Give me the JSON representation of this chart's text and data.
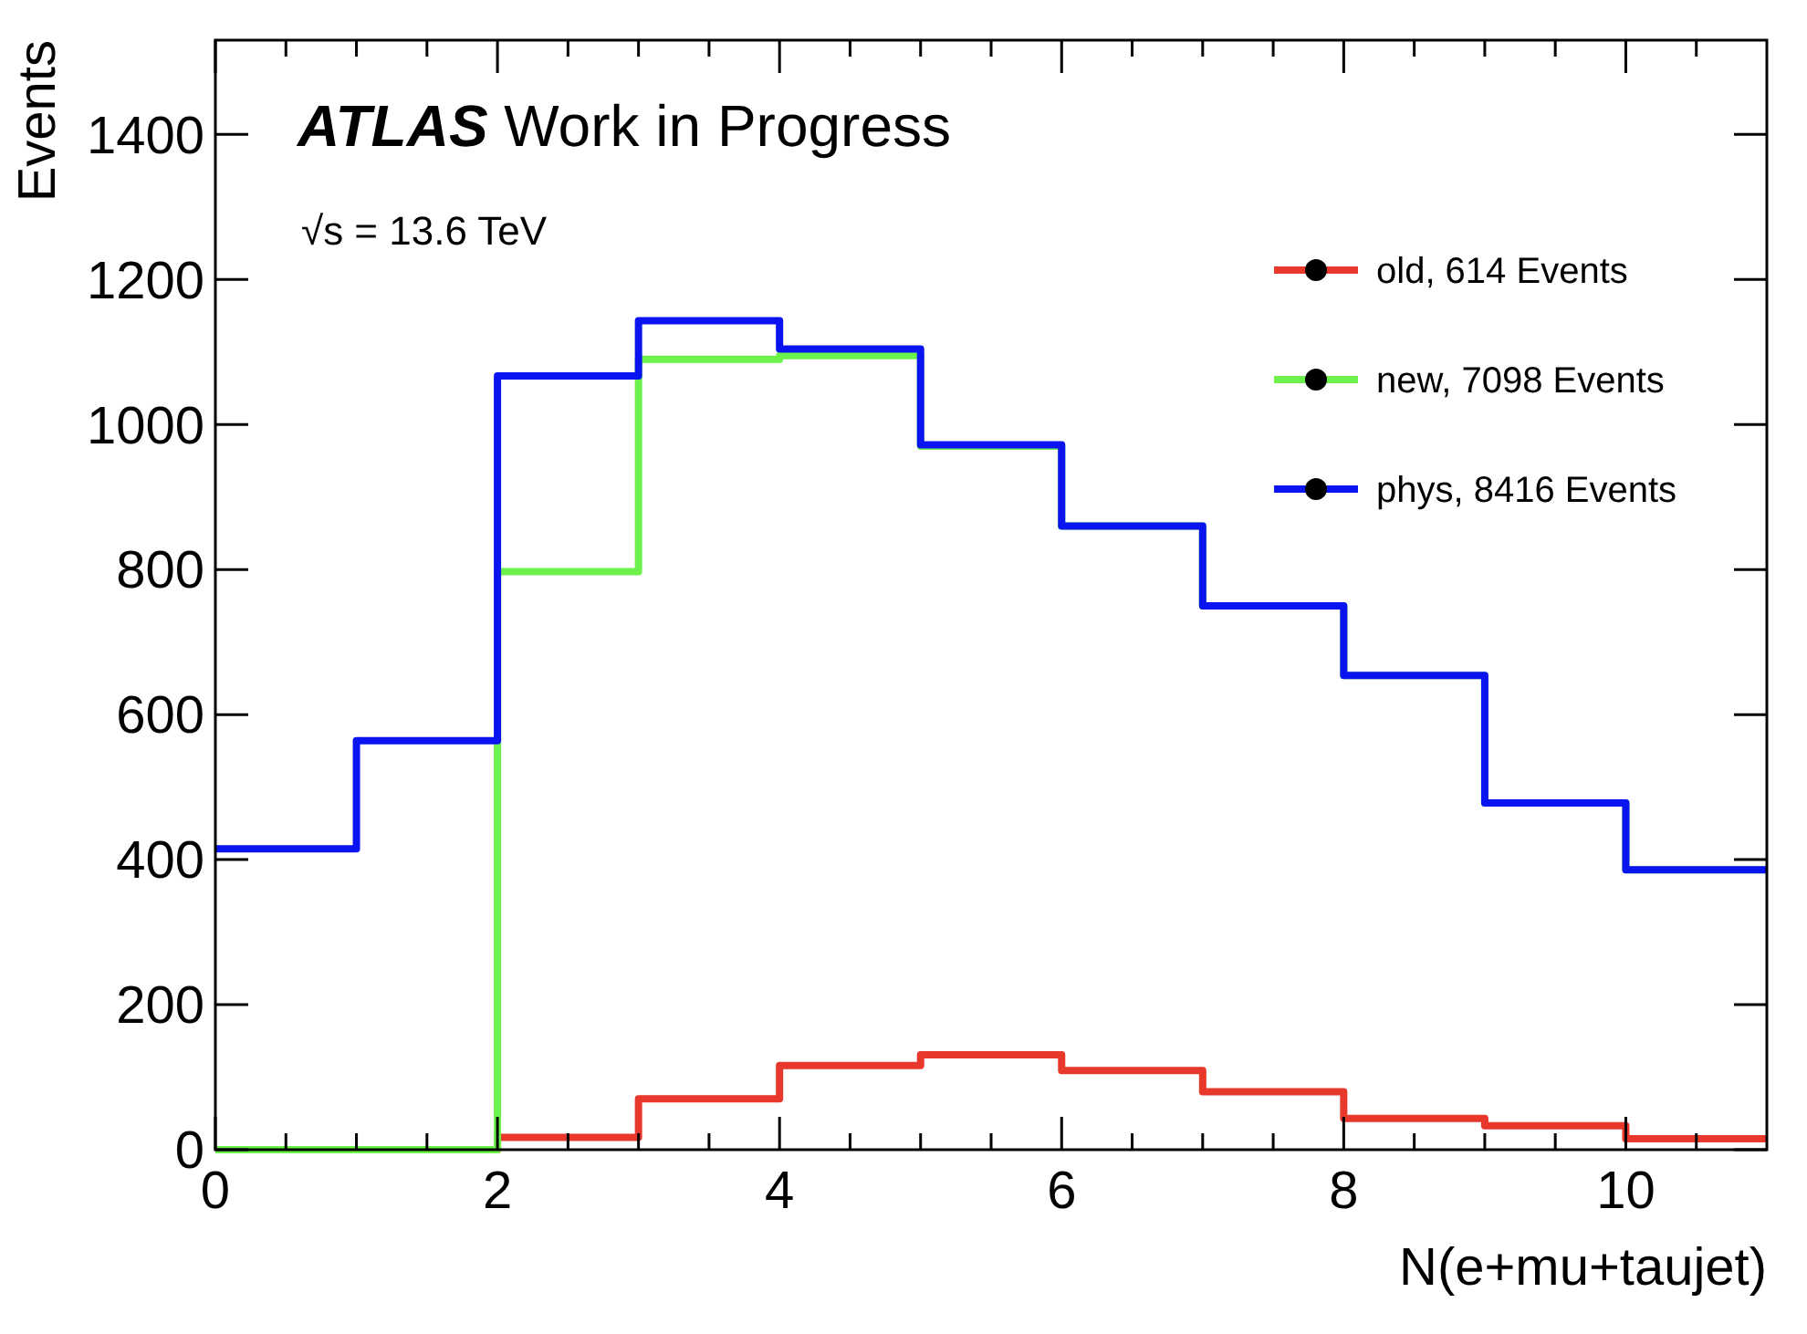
{
  "chart_data": {
    "type": "histogram",
    "title": "ATLAS Work in Progress",
    "subtitle": "√s = 13.6 TeV",
    "xlabel": "N(e+mu+taujet)",
    "ylabel": "Events",
    "bins": [
      0,
      1,
      2,
      3,
      4,
      5,
      6,
      7,
      8,
      9,
      10,
      11
    ],
    "series": [
      {
        "name": "old, 614 Events",
        "color": "#e8382b",
        "values": [
          0,
          0,
          17,
          70,
          116,
          131,
          109,
          80,
          43,
          33,
          15
        ]
      },
      {
        "name": "new, 7098 Events",
        "color": "#6cf24a",
        "values": [
          0,
          0,
          797,
          1090,
          1095,
          970,
          860,
          750,
          654,
          478,
          386
        ]
      },
      {
        "name": "phys, 8416 Events",
        "color": "#0a14f0",
        "values": [
          415,
          564,
          1067,
          1143,
          1104,
          972,
          860,
          750,
          654,
          478,
          386
        ]
      }
    ],
    "xlim": [
      0,
      11
    ],
    "ylim": [
      0,
      1530
    ],
    "xticks": [
      0,
      {
        "value": 0.5,
        "label": null
      },
      {
        "value": 1,
        "label": null
      },
      {
        "value": 1.5,
        "label": null
      },
      2,
      {
        "value": 2.5,
        "label": null
      },
      {
        "value": 3,
        "label": null
      },
      {
        "value": 3.5,
        "label": null
      },
      4,
      {
        "value": 4.5,
        "label": null
      },
      {
        "value": 5,
        "label": null
      },
      {
        "value": 5.5,
        "label": null
      },
      6,
      {
        "value": 6.5,
        "label": null
      },
      {
        "value": 7,
        "label": null
      },
      {
        "value": 7.5,
        "label": null
      },
      8,
      {
        "value": 8.5,
        "label": null
      },
      {
        "value": 9,
        "label": null
      },
      {
        "value": 9.5,
        "label": null
      },
      10,
      {
        "value": 10.5,
        "label": null
      }
    ],
    "yticks": [
      0,
      200,
      400,
      600,
      800,
      1000,
      1200,
      1400
    ],
    "legend": "top right",
    "marker": "circle",
    "line_style": "solid",
    "grid": false
  }
}
